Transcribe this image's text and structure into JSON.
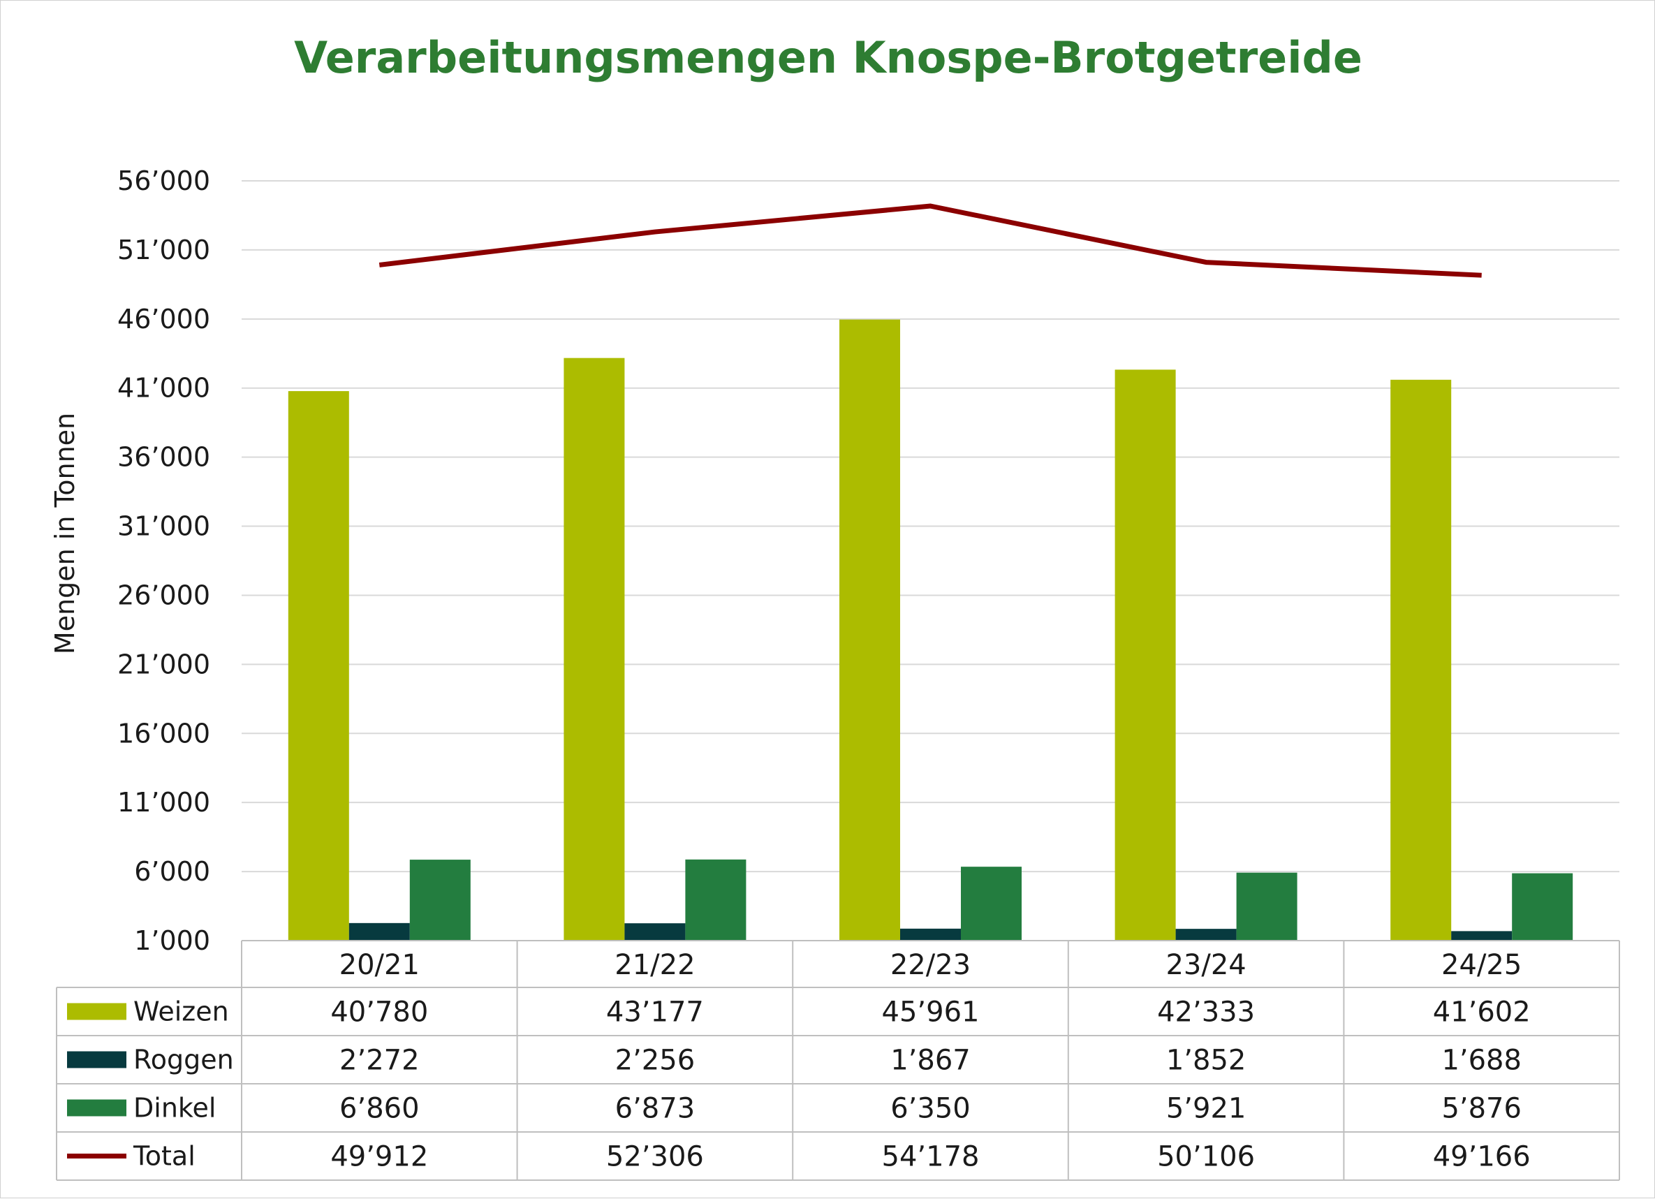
{
  "chart_data": {
    "type": "bar",
    "title": "Verarbeitungsmengen Knospe-Brotgetreide",
    "ylabel": "Mengen in Tonnen",
    "xlabel": "",
    "ylim": [
      1000,
      56000
    ],
    "yticks": [
      "56’000",
      "51’000",
      "46’000",
      "41’000",
      "36’000",
      "31’000",
      "26’000",
      "21’000",
      "16’000",
      "11’000",
      "6’000",
      "1’000"
    ],
    "categories": [
      "20/21",
      "21/22",
      "22/23",
      "23/24",
      "24/25"
    ],
    "grid": true,
    "legend": "data-table",
    "series": [
      {
        "name": "Weizen",
        "type": "bar",
        "color": "#acbc00",
        "values": [
          40780,
          43177,
          45961,
          42333,
          41602
        ],
        "labels": [
          "40’780",
          "43’177",
          "45’961",
          "42’333",
          "41’602"
        ]
      },
      {
        "name": "Roggen",
        "type": "bar",
        "color": "#073a3f",
        "values": [
          2272,
          2256,
          1867,
          1852,
          1688
        ],
        "labels": [
          "2’272",
          "2’256",
          "1’867",
          "1’852",
          "1’688"
        ]
      },
      {
        "name": "Dinkel",
        "type": "bar",
        "color": "#237d3f",
        "values": [
          6860,
          6873,
          6350,
          5921,
          5876
        ],
        "labels": [
          "6’860",
          "6’873",
          "6’350",
          "5’921",
          "5’876"
        ]
      },
      {
        "name": "Total",
        "type": "line",
        "color": "#8b0000",
        "values": [
          49912,
          52306,
          54178,
          50106,
          49166
        ],
        "labels": [
          "49’912",
          "52’306",
          "54’178",
          "50’106",
          "49’166"
        ]
      }
    ]
  },
  "colors": {
    "title": "#2e7d32",
    "grid": "#d9d9d9",
    "table_border": "#bfbfbf"
  }
}
